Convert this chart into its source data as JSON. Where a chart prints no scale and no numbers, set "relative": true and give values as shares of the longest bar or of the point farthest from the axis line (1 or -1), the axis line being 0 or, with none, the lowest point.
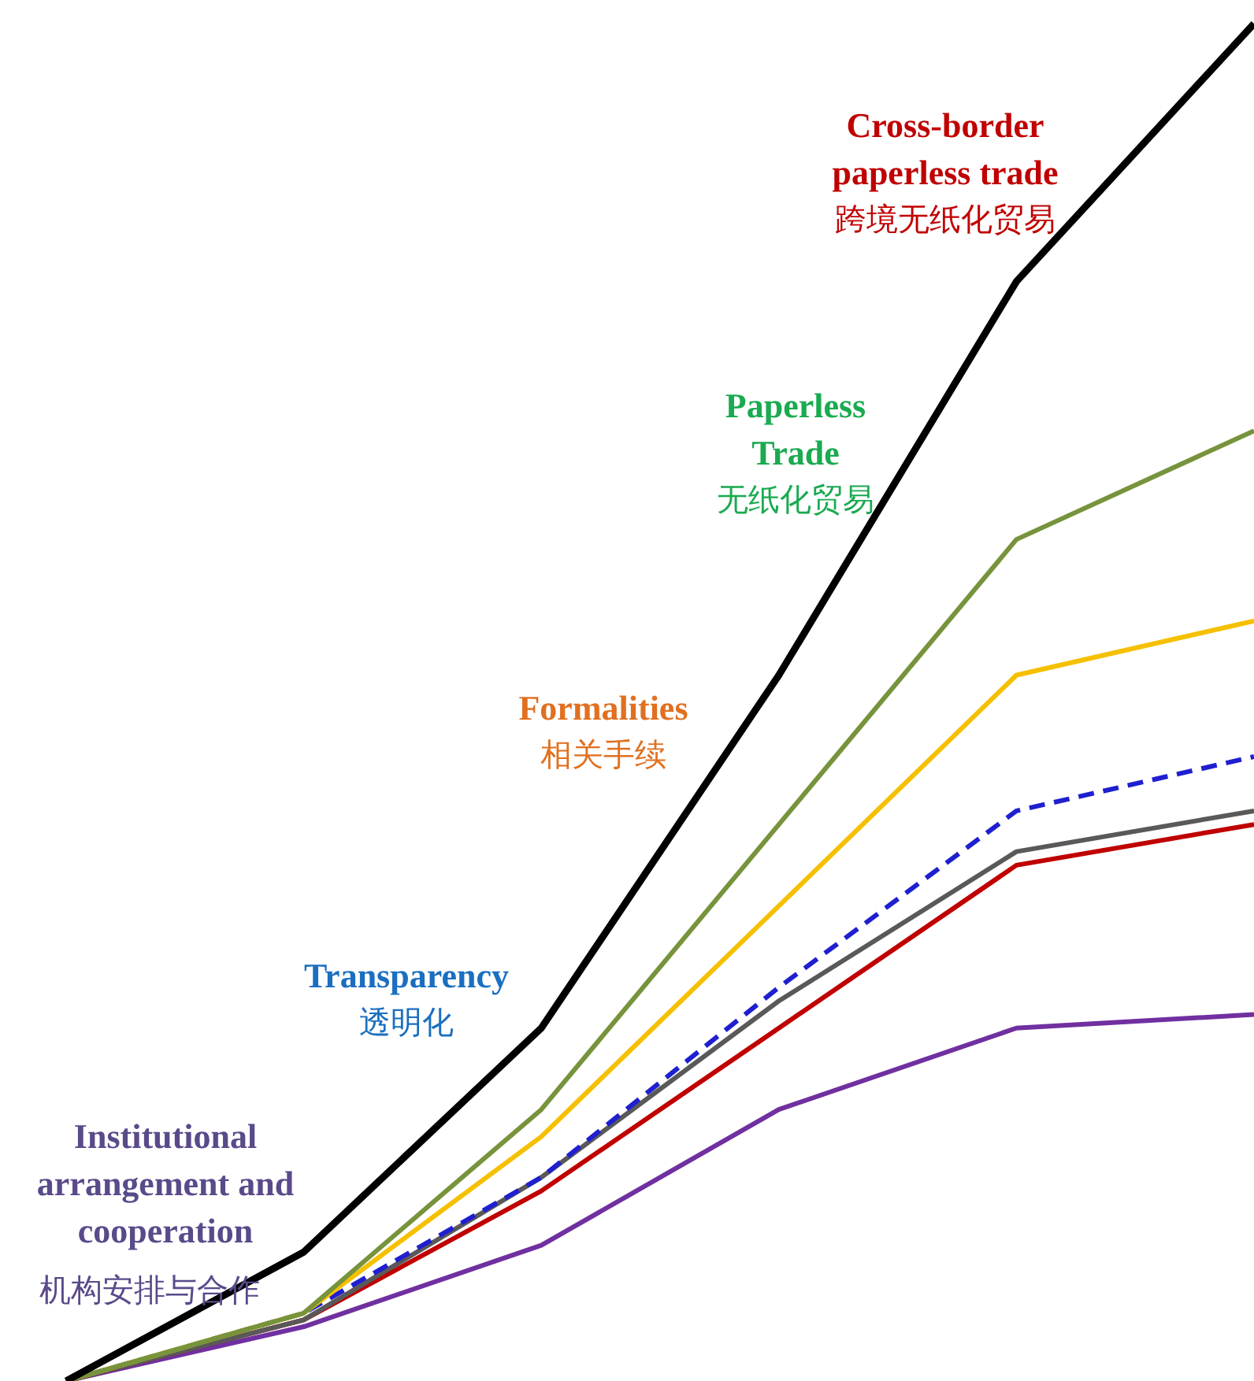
{
  "chart_data": {
    "type": "line",
    "relative": true,
    "categories": [
      null,
      null,
      null,
      null,
      null,
      null
    ],
    "series": [
      {
        "color": "#7030a0",
        "values": [
          0,
          0.04,
          0.1,
          0.2,
          0.26,
          0.27
        ]
      },
      {
        "color": "#c00000",
        "values": [
          0,
          0.045,
          0.14,
          0.26,
          0.38,
          0.41
        ]
      },
      {
        "color": "#595959",
        "values": [
          0,
          0.045,
          0.15,
          0.28,
          0.39,
          0.42
        ]
      },
      {
        "color": "#1f1fd0",
        "line_style": "dashed",
        "values": [
          0,
          0.05,
          0.15,
          0.29,
          0.42,
          0.46
        ]
      },
      {
        "color": "#f5c000",
        "values": [
          0,
          0.05,
          0.18,
          0.35,
          0.52,
          0.56
        ]
      },
      {
        "color": "#77933c",
        "values": [
          0,
          0.05,
          0.2,
          0.41,
          0.62,
          0.7
        ]
      },
      {
        "color": "#000000",
        "values": [
          0,
          0.095,
          0.26,
          0.52,
          0.81,
          1
        ]
      }
    ],
    "annotations": [
      "Cross-border\npaperless trade\n跨境无纸化贸易",
      "Paperless\nTrade\n无纸化贸易",
      "Formalities\n相关手续",
      "Transparency\n透明化",
      "Institutional\narrangement and\ncooperation",
      "机构安排与合作"
    ]
  }
}
